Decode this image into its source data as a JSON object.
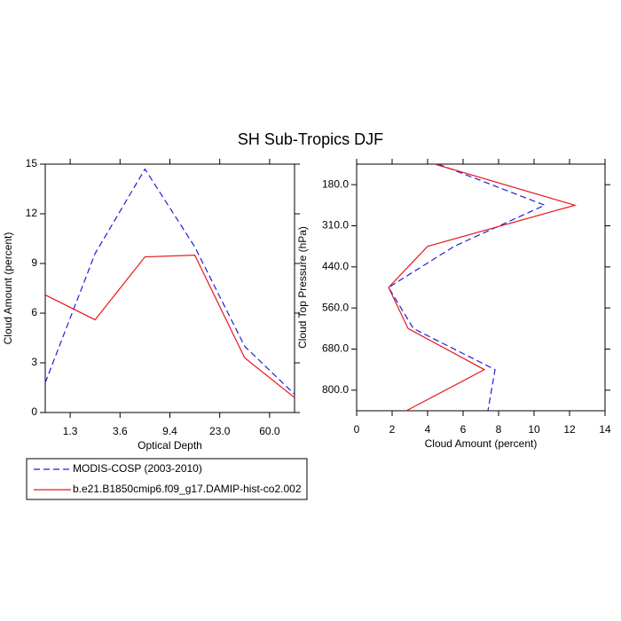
{
  "chart_data": [
    {
      "type": "line",
      "orientation": "vertical",
      "title": "SH Sub-Tropics DJF",
      "xlabel": "Optical Depth",
      "ylabel": "Cloud Amount (percent)",
      "x": [
        0,
        1,
        2,
        3,
        4,
        5
      ],
      "xlim": [
        0,
        5
      ],
      "xticks": [
        {
          "value": 0.5,
          "label": "1.3"
        },
        {
          "value": 1.5,
          "label": "3.6"
        },
        {
          "value": 2.5,
          "label": "9.4"
        },
        {
          "value": 3.5,
          "label": "23.0"
        },
        {
          "value": 4.5,
          "label": "60.0"
        }
      ],
      "ylim": [
        0,
        15
      ],
      "yticks": [
        0,
        3,
        6,
        9,
        12,
        15
      ],
      "series": [
        {
          "name": "MODIS-COSP (2003-2010)",
          "color": "#1f1fd6",
          "dashed": true,
          "values": [
            1.8,
            9.6,
            14.7,
            10.0,
            4.0,
            1.1
          ]
        },
        {
          "name": "b.e21.B1850cmip6.f09_g17.DAMIP-hist-co2.002",
          "color": "#e8161b",
          "dashed": false,
          "values": [
            7.1,
            5.6,
            9.4,
            9.5,
            3.3,
            0.9
          ]
        }
      ]
    },
    {
      "type": "line",
      "orientation": "horizontal",
      "xlabel": "Cloud Amount (percent)",
      "ylabel": "Cloud Top Pressure (hPa)",
      "y": [
        0,
        1,
        2,
        3,
        4,
        5,
        6
      ],
      "ylim": [
        0,
        6
      ],
      "y_inverted": true,
      "yticks": [
        {
          "value": 0.5,
          "label": "180.0"
        },
        {
          "value": 1.5,
          "label": "310.0"
        },
        {
          "value": 2.5,
          "label": "440.0"
        },
        {
          "value": 3.5,
          "label": "560.0"
        },
        {
          "value": 4.5,
          "label": "680.0"
        },
        {
          "value": 5.5,
          "label": "800.0"
        }
      ],
      "xlim": [
        0,
        14
      ],
      "xticks": [
        0,
        2,
        4,
        6,
        8,
        10,
        12,
        14
      ],
      "series": [
        {
          "color": "#1f1fd6",
          "dashed": true,
          "values": [
            4.6,
            10.6,
            5.5,
            1.8,
            3.2,
            7.8,
            7.4
          ]
        },
        {
          "color": "#e8161b",
          "dashed": false,
          "values": [
            4.4,
            12.3,
            4.0,
            1.8,
            2.9,
            7.2,
            2.8
          ]
        }
      ]
    }
  ]
}
